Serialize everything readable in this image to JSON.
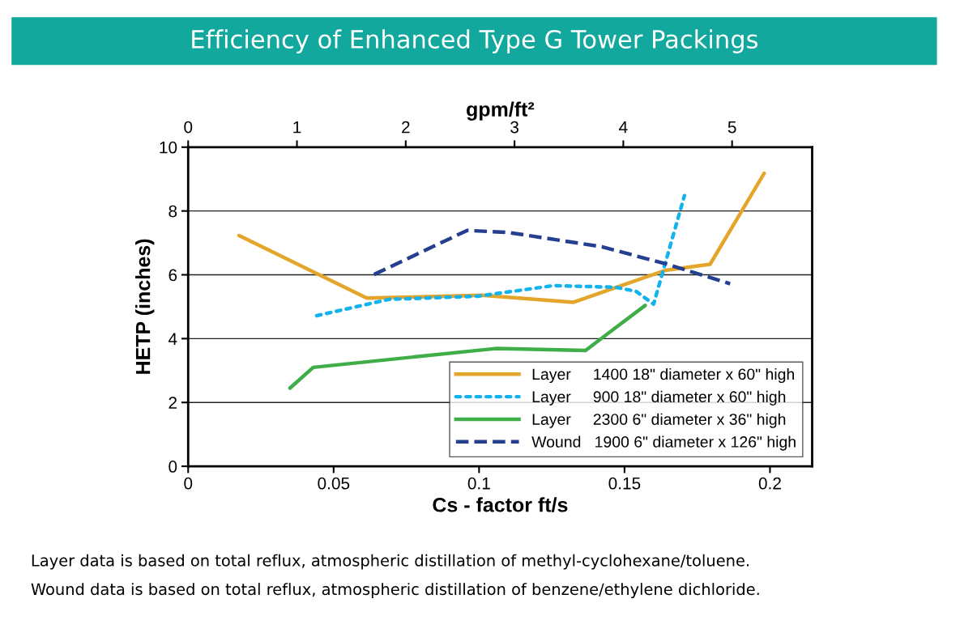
{
  "chart_data": {
    "type": "line",
    "title": "Efficiency of Enhanced Type G Tower Packings",
    "xlabel": "Cs - factor ft/s",
    "ylabel": "HETP (inches)",
    "x2label": "gpm/ft²",
    "xlim": [
      0,
      0.2145
    ],
    "xticks": [
      0,
      0.05,
      0.1,
      0.15,
      0.2
    ],
    "x2lim": [
      0,
      5.736
    ],
    "x2ticks": [
      0,
      1,
      2,
      3,
      4,
      5
    ],
    "ylim": [
      0,
      10
    ],
    "yticks": [
      0,
      2,
      4,
      6,
      8,
      10
    ],
    "grid": "y",
    "legend": "bottom right",
    "series": [
      {
        "name": "Layer     1400 18\" diameter x 60\" high",
        "color": "#e3a52a",
        "line_style": "solid",
        "x": [
          0.0175,
          0.0614,
          0.101,
          0.1325,
          0.164,
          0.1794,
          0.198
        ],
        "values": [
          7.23,
          5.27,
          5.36,
          5.14,
          6.14,
          6.33,
          9.18
        ]
      },
      {
        "name": "Layer     900 18\" diameter x 60\" high",
        "color": "#12b2ee",
        "line_style": "dotted",
        "x": [
          0.0442,
          0.069,
          0.0996,
          0.1255,
          0.147,
          0.154,
          0.16,
          0.1706
        ],
        "values": [
          4.72,
          5.23,
          5.33,
          5.66,
          5.61,
          5.48,
          5.08,
          8.48
        ]
      },
      {
        "name": "Layer     2300 6\" diameter x 36\" high",
        "color": "#3fae49",
        "line_style": "solid",
        "x": [
          0.035,
          0.043,
          0.1057,
          0.1366,
          0.1571
        ],
        "values": [
          2.45,
          3.1,
          3.69,
          3.63,
          5.04
        ]
      },
      {
        "name": "Wound   1900 6\" diameter x 126\" high",
        "color": "#243f8f",
        "line_style": "dashed",
        "x": [
          0.0639,
          0.0959,
          0.1098,
          0.1422,
          0.1647,
          0.1863
        ],
        "values": [
          6.01,
          7.39,
          7.33,
          6.88,
          6.33,
          5.72
        ]
      }
    ],
    "annotations": [
      "Layer data is based on total reflux, atmospheric distillation of methyl-cyclohexane/toluene.",
      "Wound data is based on total reflux, atmospheric distillation of benzene/ethylene dichloride."
    ]
  }
}
